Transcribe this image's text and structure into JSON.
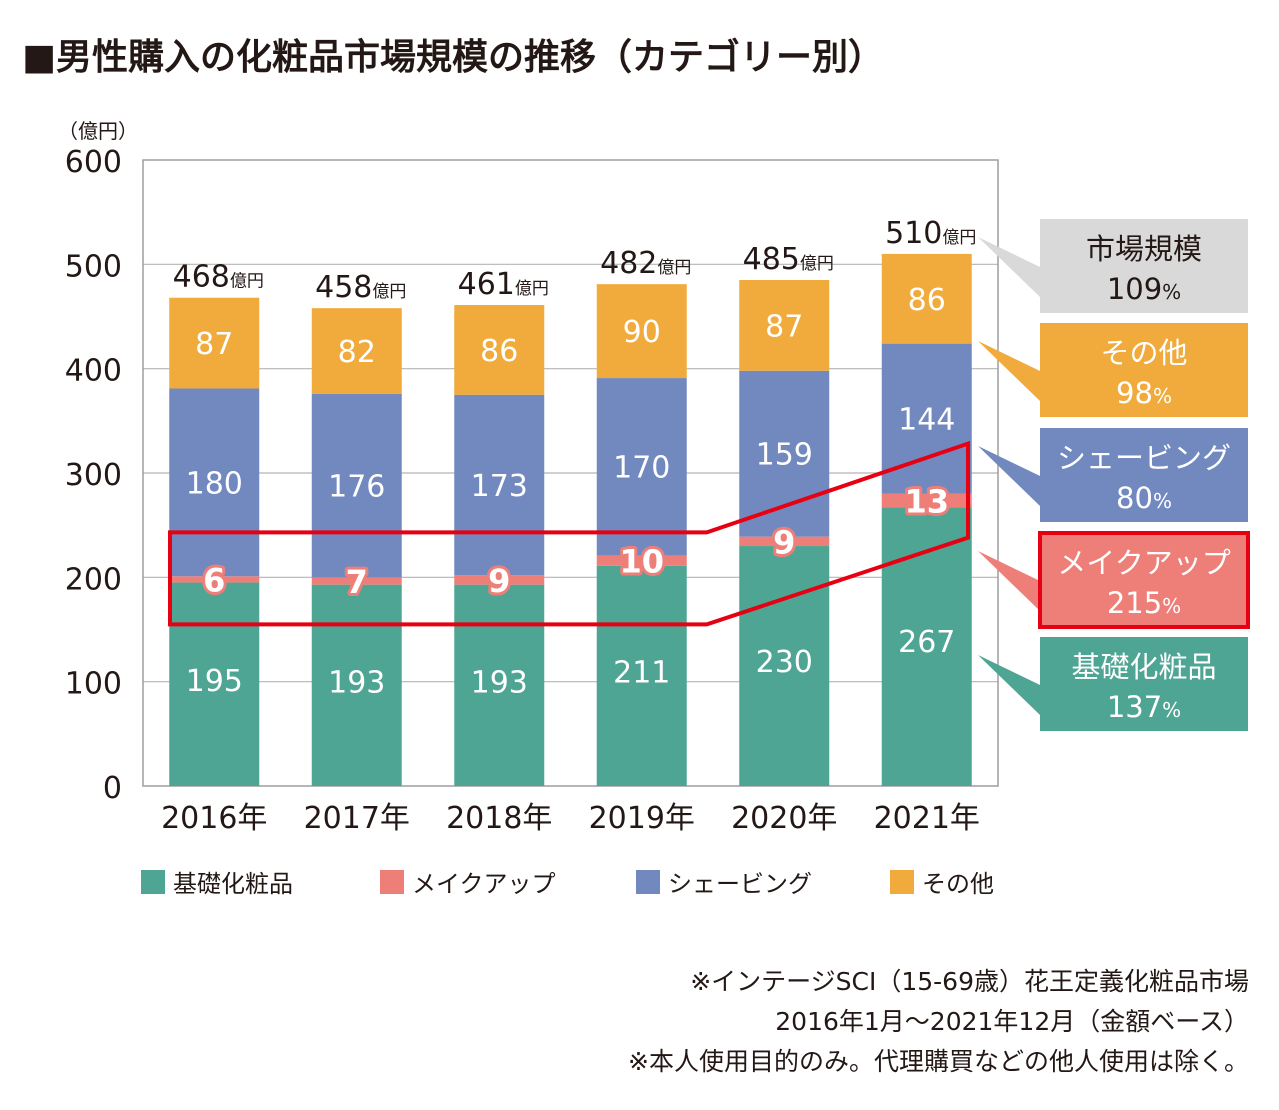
{
  "title": "■男性購入の化粧品市場規模の推移（カテゴリー別）",
  "chart_data": {
    "type": "bar",
    "stacked": true,
    "unit_label": "（億円）",
    "ylim": [
      0,
      600
    ],
    "yticks": [
      "0",
      "100",
      "200",
      "300",
      "400",
      "500",
      "600"
    ],
    "categories": [
      "2016年",
      "2017年",
      "2018年",
      "2019年",
      "2020年",
      "2021年"
    ],
    "series": [
      {
        "name": "基礎化粧品",
        "color": "#4ea593",
        "values": [
          195,
          193,
          193,
          211,
          230,
          267
        ]
      },
      {
        "name": "メイクアップ",
        "color": "#ed7f78",
        "values": [
          6,
          7,
          9,
          10,
          9,
          13
        ]
      },
      {
        "name": "シェービング",
        "color": "#7289c0",
        "values": [
          180,
          176,
          173,
          170,
          159,
          144
        ]
      },
      {
        "name": "その他",
        "color": "#f0ab3c",
        "values": [
          87,
          82,
          86,
          90,
          87,
          86
        ]
      }
    ],
    "totals": [
      "468",
      "458",
      "461",
      "482",
      "485",
      "510"
    ],
    "total_unit": "億円",
    "growth_boxes": [
      {
        "name": "市場規模",
        "value": "109",
        "unit": "%",
        "color": "#d9d9d9",
        "text_color": "#231815"
      },
      {
        "name": "その他",
        "value": "98",
        "unit": "%",
        "color": "#f0ab3c",
        "text_color": "#ffffff"
      },
      {
        "name": "シェービング",
        "value": "80",
        "unit": "%",
        "color": "#7289c0",
        "text_color": "#ffffff"
      },
      {
        "name": "メイクアップ",
        "value": "215",
        "unit": "%",
        "color": "#ed7f78",
        "text_color": "#ffffff"
      },
      {
        "name": "基礎化粧品",
        "value": "137",
        "unit": "%",
        "color": "#4ea593",
        "text_color": "#ffffff"
      }
    ],
    "legend": [
      "基礎化粧品",
      "メイクアップ",
      "シェービング",
      "その他"
    ],
    "legend_placement": "bottom",
    "highlight_color": "#e60012",
    "grid": true
  },
  "notes": [
    "※インテージSCI（15-69歳）花王定義化粧品市場",
    "2016年1月〜2021年12月（金額ベース）",
    "※本人使用目的のみ。代理購買などの他人使用は除く。"
  ]
}
